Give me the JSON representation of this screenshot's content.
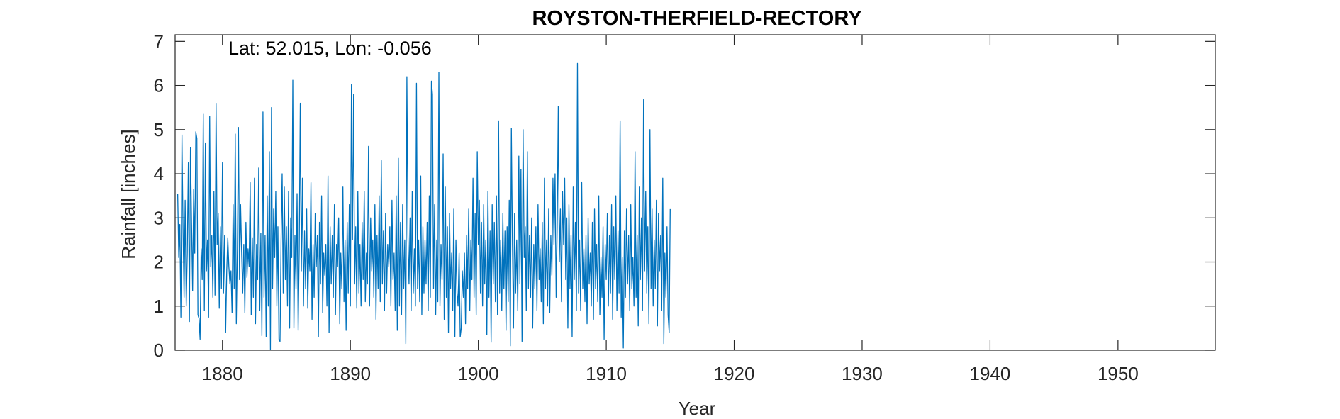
{
  "chart_data": {
    "type": "line",
    "title": "ROYSTON-THERFIELD-RECTORY",
    "xlabel": "Year",
    "ylabel": "Rainfall [inches]",
    "annotation": "Lat: 52.015, Lon: -0.056",
    "xlim": [
      1876.3,
      1957.6
    ],
    "ylim": [
      0,
      7.15
    ],
    "xticks": [
      1880,
      1890,
      1900,
      1910,
      1920,
      1930,
      1940,
      1950
    ],
    "yticks": [
      0,
      1,
      2,
      3,
      4,
      5,
      6,
      7
    ],
    "grid": false,
    "line_color": "#0072BD",
    "series": [
      {
        "start_year": 1876.5,
        "step_years": 0.083333,
        "values": [
          3.55,
          2.1,
          2.85,
          0.75,
          4.88,
          2.75,
          1.2,
          3.4,
          1.0,
          2.2,
          4.25,
          0.65,
          4.6,
          2.9,
          1.35,
          3.65,
          2.2,
          4.95,
          4.8,
          0.8,
          0.72,
          0.25,
          2.3,
          1.6,
          5.35,
          0.9,
          4.7,
          1.8,
          2.5,
          0.75,
          5.3,
          1.9,
          2.6,
          1.2,
          3.6,
          1.25,
          5.6,
          2.4,
          3.1,
          0.95,
          2.8,
          1.4,
          4.25,
          1.3,
          2.6,
          0.4,
          1.8,
          2.55,
          1.9,
          1.5,
          1.8,
          0.85,
          3.3,
          1.4,
          4.9,
          0.6,
          2.3,
          5.05,
          1.6,
          3.3,
          2.2,
          1.3,
          2.4,
          0.85,
          2.9,
          1.65,
          2.3,
          1.9,
          3.8,
          0.8,
          2.55,
          1.2,
          3.9,
          0.6,
          2.4,
          1.6,
          4.13,
          0.9,
          2.65,
          0.33,
          5.4,
          1.2,
          2.6,
          0.3,
          3.5,
          1.0,
          4.5,
          0.02,
          5.5,
          1.4,
          3.2,
          2.1,
          3.6,
          1.0,
          2.8,
          0.25,
          0.2,
          2.5,
          4.0,
          1.3,
          3.7,
          1.6,
          2.8,
          1.0,
          3.6,
          0.5,
          3.0,
          2.1,
          6.12,
          0.5,
          2.6,
          1.4,
          3.55,
          0.45,
          2.25,
          5.6,
          1.8,
          3.9,
          1.0,
          2.7,
          1.4,
          3.2,
          0.95,
          2.3,
          1.8,
          3.8,
          0.7,
          2.4,
          1.2,
          3.1,
          1.9,
          2.6,
          0.3,
          2.9,
          1.5,
          3.5,
          0.85,
          2.2,
          1.7,
          2.4,
          1.0,
          3.95,
          0.4,
          2.8,
          1.5,
          2.6,
          1.2,
          3.3,
          0.8,
          2.4,
          1.9,
          3.0,
          0.6,
          2.2,
          1.4,
          3.7,
          1.1,
          2.5,
          0.45,
          2.9,
          1.3,
          3.3,
          1.0,
          6.02,
          2.5,
          5.8,
          1.5,
          2.8,
          0.95,
          3.6,
          1.3,
          2.4,
          1.0,
          2.9,
          1.6,
          3.6,
          1.1,
          2.2,
          1.5,
          4.62,
          1.0,
          3.0,
          1.8,
          2.5,
          1.2,
          3.3,
          0.7,
          2.6,
          1.4,
          3.5,
          1.1,
          4.3,
          1.5,
          2.7,
          0.9,
          3.1,
          1.3,
          2.4,
          1.9,
          2.8,
          1.0,
          3.4,
          1.6,
          2.2,
          0.9,
          3.5,
          0.45,
          4.35,
          1.0,
          2.9,
          0.8,
          3.3,
          1.4,
          2.5,
          0.15,
          6.2,
          2.6,
          1.5,
          3.0,
          0.9,
          3.6,
          1.3,
          2.3,
          1.0,
          6.05,
          1.4,
          2.5,
          1.1,
          3.95,
          0.8,
          2.8,
          1.3,
          2.5,
          1.5,
          2.9,
          0.9,
          3.5,
          1.2,
          6.1,
          5.8,
          1.4,
          3.3,
          0.8,
          2.5,
          1.1,
          6.3,
          1.0,
          2.4,
          1.6,
          4.45,
          0.7,
          3.7,
          1.2,
          2.8,
          0.4,
          3.1,
          1.4,
          2.2,
          0.9,
          3.2,
          0.3,
          2.5,
          1.3,
          1.0,
          2.2,
          0.3,
          0.5,
          1.8,
          1.2,
          2.2,
          0.6,
          2.6,
          1.4,
          3.2,
          0.9,
          2.5,
          1.6,
          3.9,
          1.2,
          3.1,
          0.8,
          4.5,
          2.4,
          3.4,
          1.3,
          2.9,
          1.0,
          3.3,
          1.5,
          2.5,
          0.35,
          3.6,
          1.2,
          2.7,
          0.18,
          3.3,
          1.5,
          2.9,
          1.1,
          3.5,
          0.8,
          5.2,
          1.3,
          2.5,
          0.9,
          3.1,
          1.4,
          2.7,
          0.45,
          2.8,
          1.1,
          3.4,
          0.1,
          5.03,
          2.4,
          0.5,
          3.1,
          1.3,
          2.5,
          0.9,
          4.4,
          1.5,
          4.1,
          0.2,
          5.0,
          2.1,
          2.8,
          0.9,
          4.5,
          1.4,
          2.6,
          1.2,
          3.0,
          0.5,
          2.4,
          1.4,
          2.8,
          0.9,
          3.3,
          1.6,
          2.3,
          1.1,
          2.9,
          0.6,
          3.9,
          1.4,
          2.5,
          1.0,
          3.2,
          0.85,
          2.6,
          1.7,
          3.9,
          2.4,
          4.0,
          1.2,
          2.8,
          5.53,
          2.0,
          3.2,
          1.1,
          3.6,
          2.4,
          3.9,
          1.6,
          3.0,
          0.5,
          3.3,
          1.4,
          2.6,
          0.3,
          3.7,
          1.6,
          2.9,
          0.9,
          6.5,
          1.3,
          2.5,
          0.9,
          3.8,
          1.4,
          2.3,
          1.1,
          2.6,
          0.6,
          3.0,
          1.5,
          2.2,
          1.0,
          2.9,
          0.7,
          3.2,
          1.4,
          2.4,
          1.1,
          3.5,
          0.8,
          2.1,
          1.2,
          2.8,
          0.25,
          2.4,
          1.6,
          3.1,
          1.0,
          2.6,
          1.3,
          3.3,
          0.7,
          2.8,
          1.6,
          3.5,
          0.9,
          2.7,
          1.3,
          5.2,
          0.75,
          2.1,
          0.05,
          2.7,
          1.2,
          3.2,
          1.5,
          2.6,
          0.9,
          3.3,
          1.4,
          2.1,
          1.0,
          4.5,
          1.2,
          2.6,
          0.55,
          3.7,
          1.6,
          3.0,
          0.9,
          5.68,
          1.8,
          3.6,
          1.3,
          2.8,
          0.6,
          5.0,
          1.4,
          3.2,
          1.0,
          2.5,
          1.4,
          3.4,
          0.55,
          3.1,
          1.8,
          2.6,
          0.9,
          3.9,
          0.15,
          2.2,
          1.2,
          2.8,
          0.8,
          0.4,
          3.2
        ]
      }
    ]
  }
}
